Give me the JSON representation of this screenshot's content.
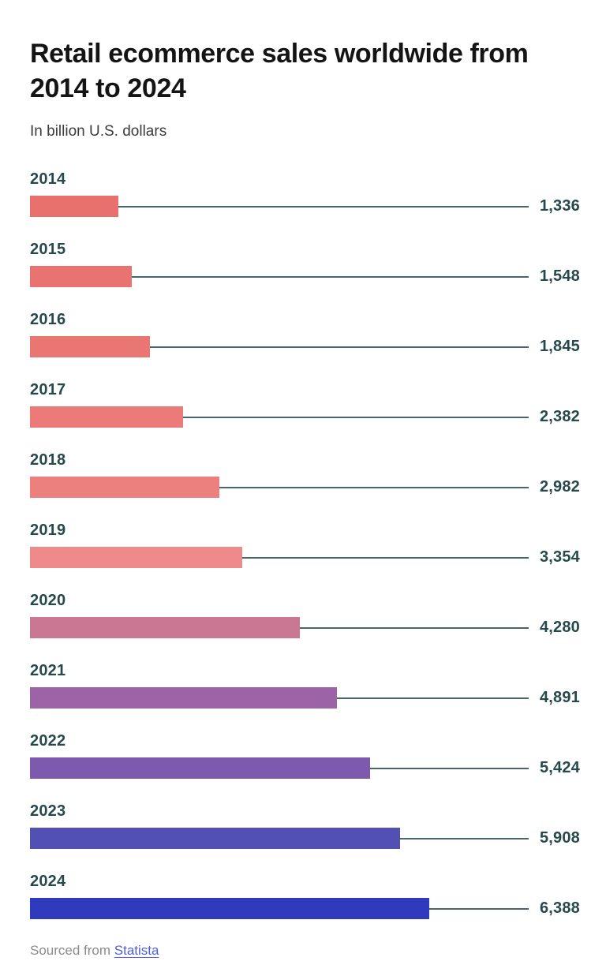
{
  "header": {
    "title": "Retail ecommerce sales worldwide from 2014 to 2024",
    "subtitle": "In billion U.S. dollars"
  },
  "chart_data": {
    "type": "bar",
    "orientation": "horizontal",
    "title": "Retail ecommerce sales worldwide from 2014 to 2024",
    "units": "billion U.S. dollars",
    "categories": [
      "2014",
      "2015",
      "2016",
      "2017",
      "2018",
      "2019",
      "2020",
      "2021",
      "2022",
      "2023",
      "2024"
    ],
    "values": [
      1336,
      1548,
      1845,
      2382,
      2982,
      3354,
      4280,
      4891,
      5424,
      5908,
      6388
    ],
    "value_labels": [
      "1,336",
      "1,548",
      "1,845",
      "2,382",
      "2,982",
      "3,354",
      "4,280",
      "4,891",
      "5,424",
      "5,908",
      "6,388"
    ],
    "bar_colors": [
      "#e8716d",
      "#e97370",
      "#ea7674",
      "#eb7a78",
      "#ec807f",
      "#ee8a8b",
      "#c97792",
      "#9c63a6",
      "#7d5aad",
      "#5350b4",
      "#2f3abd"
    ],
    "xlim": [
      0,
      6388
    ],
    "grid": false,
    "legend": false,
    "label_color": "#26494c",
    "leader_line_color": "#47656b"
  },
  "footer": {
    "sourced_text": "Sourced from",
    "source_link": "Statista"
  }
}
